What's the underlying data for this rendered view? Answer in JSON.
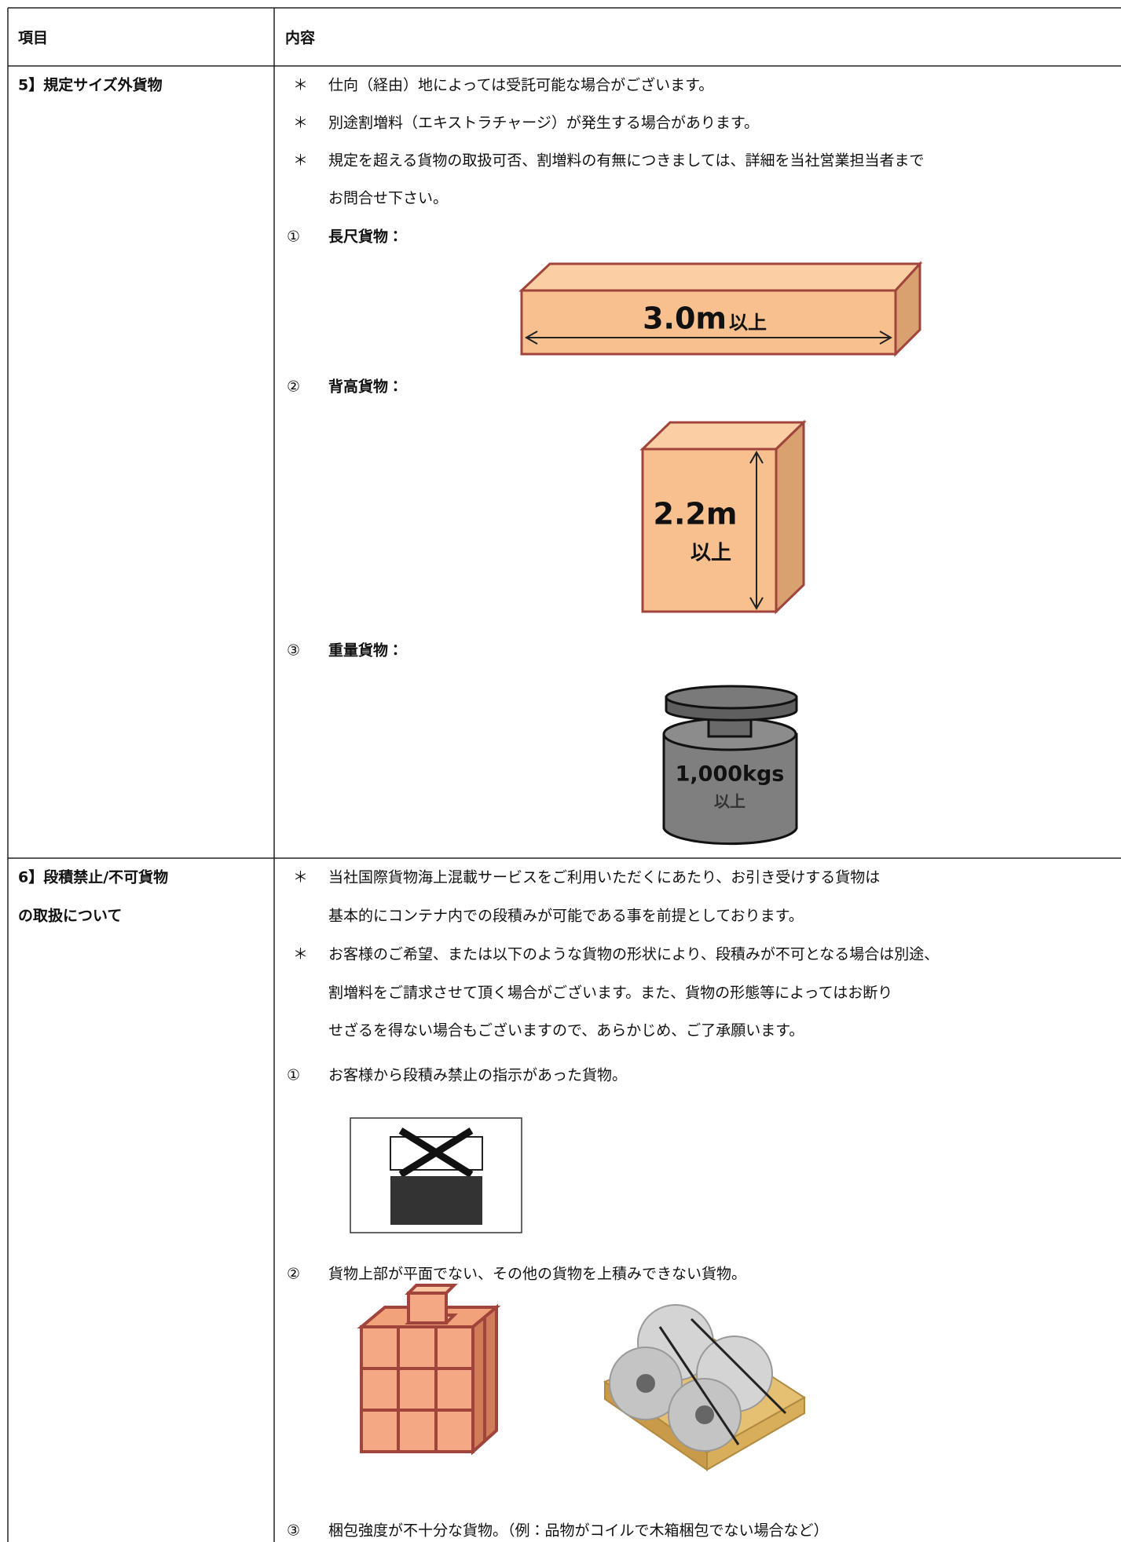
{
  "table": {
    "header": [
      "項目",
      "内容"
    ],
    "rows": [
      {
        "label": [
          "5】規定サイズ外貨物"
        ],
        "items": [
          {
            "marker": "＊",
            "lines": [
              "仕向（経由）地によっては受託可能な場合がございます。"
            ]
          },
          {
            "marker": "＊",
            "lines": [
              "別途割増料（エキストラチャージ）が発生する場合があります。"
            ]
          },
          {
            "marker": "＊",
            "lines": [
              "規定を超える貨物の取扱可否、割増料の有無につきましては、詳細を当社営業担当者まで",
              "お問合せ下さい。"
            ]
          },
          {
            "marker": "①",
            "lines": [
              "長尺貨物："
            ],
            "figure": [
              "3.0m",
              "以上"
            ]
          },
          {
            "marker": "②",
            "lines": [
              "背高貨物："
            ],
            "figure": [
              "2.2m",
              "以上"
            ]
          },
          {
            "marker": "③",
            "lines": [
              "重量貨物："
            ],
            "figure": [
              "1,000kgs",
              "以上"
            ]
          }
        ]
      },
      {
        "label": [
          "6】段積禁止/不可貨物",
          "の取扱について"
        ],
        "items": [
          {
            "marker": "＊",
            "lines": [
              "当社国際貨物海上混載サービスをご利用いただくにあたり、お引き受けする貨物は",
              "基本的にコンテナ内での段積みが可能である事を前提としております。"
            ]
          },
          {
            "marker": "＊",
            "lines": [
              "お客様のご希望、または以下のような貨物の形状により、段積みが不可となる場合は別途、",
              "割増料をご請求させて頂く場合がございます。また、貨物の形態等によってはお断り",
              "せざるを得ない場合もございますので、あらかじめ、ご了承願います。"
            ]
          },
          {
            "marker": "①",
            "lines": [
              "お客様から段積み禁止の指示があった貨物。"
            ]
          },
          {
            "marker": "②",
            "lines": [
              "貨物上部が平面でない、その他の貨物を上積みできない貨物。"
            ]
          },
          {
            "marker": "③",
            "lines": [
              "梱包強度が不十分な貨物。（例：品物がコイルで木箱梱包でない場合など）"
            ]
          }
        ]
      }
    ]
  }
}
